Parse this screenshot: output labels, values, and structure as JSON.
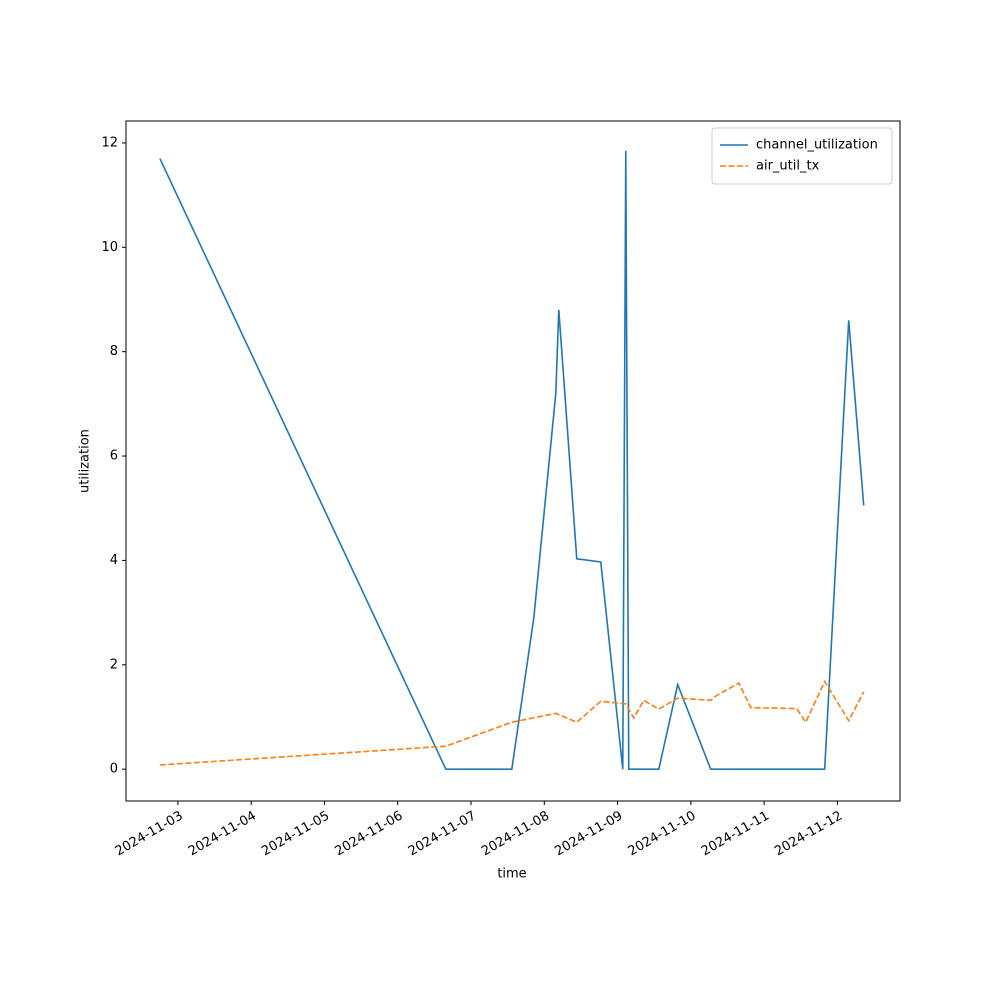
{
  "chart_data": {
    "type": "line",
    "xlabel": "time",
    "ylabel": "utilization",
    "xlim": [
      "2024-11-02T07:00",
      "2024-11-12T20:30"
    ],
    "xticks": [
      "2024-11-03",
      "2024-11-04",
      "2024-11-05",
      "2024-11-06",
      "2024-11-07",
      "2024-11-08",
      "2024-11-09",
      "2024-11-10",
      "2024-11-11",
      "2024-11-12"
    ],
    "ylim": [
      -0.61,
      12.42
    ],
    "yticks": [
      0,
      2,
      4,
      6,
      8,
      10,
      12
    ],
    "legend": "upper right",
    "series": [
      {
        "name": "channel_utilization",
        "color": "#1f77b4",
        "dash": "solid",
        "x": [
          "2024-11-02T18:06",
          "2024-11-06T15:45",
          "2024-11-07T13:22",
          "2024-11-07T20:34",
          "2024-11-08T03:46",
          "2024-11-08T04:45",
          "2024-11-08T10:38",
          "2024-11-08T18:30",
          "2024-11-09T01:42",
          "2024-11-09T02:41",
          "2024-11-09T03:40",
          "2024-11-09T13:30",
          "2024-11-09T19:42",
          "2024-11-10T06:30",
          "2024-11-11T19:50",
          "2024-11-12T03:42",
          "2024-11-12T08:37"
        ],
        "values": [
          11.7,
          0,
          0,
          2.9,
          7.2,
          8.8,
          4.03,
          3.97,
          0,
          11.85,
          0,
          0,
          1.62,
          0,
          0,
          8.6,
          5.05
        ]
      },
      {
        "name": "air_util_tx",
        "color": "#ff7f0e",
        "dash": "dashed",
        "x": [
          "2024-11-02T18:06",
          "2024-11-06T15:45",
          "2024-11-07T13:22",
          "2024-11-08T03:46",
          "2024-11-08T10:38",
          "2024-11-08T18:30",
          "2024-11-09T02:41",
          "2024-11-09T05:18",
          "2024-11-09T08:34",
          "2024-11-09T13:30",
          "2024-11-09T19:42",
          "2024-11-10T06:30",
          "2024-11-10T08:10",
          "2024-11-10T15:42",
          "2024-11-10T19:37",
          "2024-11-11T10:40",
          "2024-11-11T13:38",
          "2024-11-11T19:50",
          "2024-11-12T03:42",
          "2024-11-12T08:37"
        ],
        "values": [
          0.08,
          0.44,
          0.9,
          1.07,
          0.9,
          1.3,
          1.25,
          0.98,
          1.32,
          1.15,
          1.36,
          1.32,
          1.4,
          1.65,
          1.18,
          1.16,
          0.9,
          1.68,
          0.93,
          1.48
        ]
      }
    ]
  }
}
